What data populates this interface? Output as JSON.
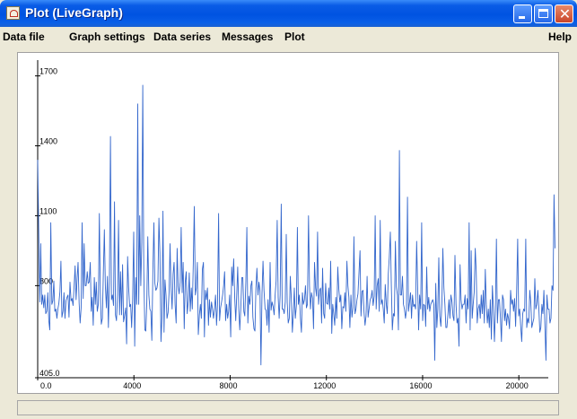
{
  "window": {
    "title": "Plot (LiveGraph)"
  },
  "menu": {
    "items": [
      "Data file",
      "Graph settings",
      "Data series",
      "Messages",
      "Plot"
    ],
    "help": "Help"
  },
  "colors": {
    "series": "#3366CC"
  },
  "chart_data": {
    "type": "line",
    "xlim": [
      0,
      21000
    ],
    "ylim": [
      405,
      1760
    ],
    "x_ticks": [
      0,
      4000,
      8000,
      12000,
      16000,
      20000
    ],
    "x_tick_labels": [
      "0.0",
      "4000",
      "8000",
      "12000",
      "16000",
      "20000"
    ],
    "y_ticks": [
      405,
      800,
      1100,
      1400,
      1700
    ],
    "y_tick_labels": [
      "405.0",
      "800",
      "1100",
      "1400",
      "1700"
    ],
    "series": [
      {
        "x_start": 0,
        "x_step": 42,
        "values": [
          1340,
          1050,
          730,
          980,
          720,
          760,
          705,
          760,
          680,
          690,
          770,
          650,
          610,
          1070,
          720,
          735,
          820,
          690,
          700,
          660,
          700,
          725,
          775,
          905,
          665,
          690,
          770,
          660,
          735,
          750,
          760,
          665,
          815,
          735,
          745,
          715,
          790,
          885,
          740,
          830,
          900,
          725,
          640,
          705,
          1070,
          745,
          980,
          800,
          800,
          860,
          810,
          815,
          900,
          690,
          750,
          630,
          835,
          720,
          815,
          690,
          720,
          1110,
          770,
          635,
          660,
          860,
          1040,
          800,
          705,
          840,
          620,
          810,
          1440,
          740,
          760,
          715,
          1160,
          675,
          650,
          765,
          1080,
          675,
          860,
          675,
          890,
          645,
          670,
          705,
          550,
          925,
          795,
          710,
          720,
          620,
          740,
          1030,
          540,
          835,
          720,
          1580,
          720,
          1100,
          800,
          985,
          1660,
          870,
          610,
          605,
          730,
          1010,
          760,
          700,
          690,
          565,
          870,
          1070,
          810,
          780,
          790,
          820,
          1090,
          940,
          560,
          665,
          1120,
          600,
          825,
          760,
          660,
          685,
          770,
          980,
          795,
          700,
          850,
          900,
          720,
          640,
          960,
          800,
          765,
          815,
          1050,
          770,
          900,
          615,
          815,
          860,
          680,
          735,
          855,
          690,
          790,
          700,
          895,
          1140,
          760,
          790,
          900,
          590,
          675,
          720,
          660,
          870,
          900,
          580,
          780,
          740,
          790,
          630,
          740,
          665,
          730,
          700,
          660,
          700,
          760,
          630,
          720,
          1110,
          650,
          705,
          730,
          760,
          800,
          860,
          650,
          720,
          660,
          690,
          760,
          580,
          880,
          800,
          915,
          745,
          650,
          760,
          880,
          700,
          610,
          700,
          835,
          835,
          690,
          670,
          820,
          1050,
          640,
          755,
          720,
          800,
          820,
          665,
          615,
          605,
          790,
          875,
          760,
          815,
          780,
          460,
          770,
          905,
          780,
          700,
          695,
          630,
          740,
          600,
          900,
          695,
          730,
          710,
          675,
          760,
          820,
          1080,
          750,
          660,
          760,
          1150,
          700,
          700,
          680,
          730,
          1020,
          725,
          640,
          660,
          840,
          750,
          600,
          680,
          790,
          660,
          715,
          1050,
          720,
          760,
          660,
          600,
          770,
          720,
          740,
          800,
          705,
          720,
          1100,
          800,
          700,
          770,
          745,
          615,
          900,
          790,
          755,
          1030,
          720,
          780,
          790,
          640,
          875,
          680,
          660,
          810,
          725,
          720,
          790,
          700,
          905,
          595,
          720,
          680,
          630,
          750,
          660,
          880,
          790,
          730,
          760,
          615,
          710,
          705,
          770,
          690,
          905,
          800,
          750,
          620,
          760,
          665,
          705,
          1010,
          680,
          700,
          740,
          765,
          860,
          950,
          670,
          775,
          780,
          685,
          630,
          670,
          840,
          665,
          700,
          740,
          750,
          780,
          715,
          755,
          1100,
          700,
          800,
          830,
          690,
          1080,
          720,
          740,
          700,
          640,
          805,
          720,
          680,
          850,
          920,
          1030,
          800,
          610,
          680,
          670,
          990,
          795,
          760,
          610,
          1380,
          760,
          760,
          840,
          720,
          700,
          660,
          700,
          1180,
          690,
          730,
          770,
          660,
          760,
          710,
          720,
          700,
          990,
          800,
          610,
          760,
          700,
          1070,
          650,
          720,
          715,
          625,
          880,
          700,
          750,
          690,
          720,
          730,
          740,
          720,
          480,
          810,
          620,
          700,
          920,
          670,
          625,
          720,
          960,
          790,
          720,
          620,
          620,
          680,
          740,
          660,
          760,
          730,
          670,
          650,
          930,
          720,
          640,
          660,
          540,
          890,
          740,
          700,
          720,
          720,
          760,
          640,
          745,
          700,
          1070,
          610,
          950,
          660,
          720,
          770,
          960,
          860,
          640,
          700,
          720,
          660,
          760,
          680,
          780,
          640,
          870,
          720,
          640,
          700,
          620,
          740,
          570,
          800,
          705,
          560,
          700,
          1000,
          640,
          740,
          740,
          660,
          560,
          760,
          740,
          650,
          700,
          630,
          680,
          660,
          615,
          780,
          720,
          740,
          690,
          745,
          625,
          770,
          1000,
          670,
          700,
          630,
          560,
          680,
          700,
          690,
          1000,
          620,
          660,
          640,
          780,
          730,
          620,
          640,
          660,
          830,
          700,
          720,
          780,
          700,
          600,
          620,
          720,
          680,
          780,
          620,
          480,
          760,
          700,
          700,
          640,
          660,
          800,
          780,
          1190,
          960
        ]
      }
    ]
  }
}
